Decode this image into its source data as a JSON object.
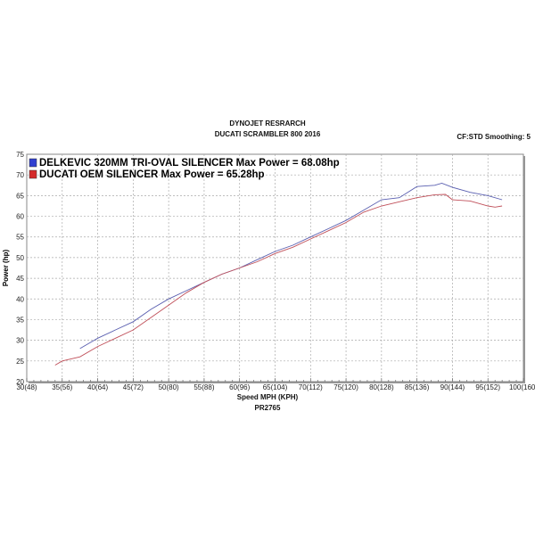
{
  "chart_data": {
    "type": "line",
    "title": "DYNOJET RESRARCH",
    "subtitle": "DUCATI SCRAMBLER 800 2016",
    "corner_note": "CF:STD Smoothing: 5",
    "xlabel": "Speed MPH (KPH)",
    "footer": "PR2765",
    "ylabel": "Power (hp)",
    "xlim": [
      30,
      100
    ],
    "ylim": [
      20,
      75
    ],
    "grid": true,
    "legend_placement": "top-left",
    "x_ticks": [
      "30(48)",
      "35(56)",
      "40(64)",
      "45(72)",
      "50(80)",
      "55(88)",
      "60(96)",
      "65(104)",
      "70(112)",
      "75(120)",
      "80(128)",
      "85(136)",
      "90(144)",
      "95(152)",
      "100(160)"
    ],
    "y_ticks": [
      "20",
      "25",
      "30",
      "35",
      "40",
      "45",
      "50",
      "55",
      "60",
      "65",
      "70",
      "75"
    ],
    "series": [
      {
        "name": "DELKEVIC 320MM TRI-OVAL SILENCER  Max Power = 68.08hp",
        "color": "#5a5fb0",
        "x": [
          37.5,
          40,
          42.5,
          45,
          47.5,
          50,
          52.5,
          55,
          57.5,
          60,
          62.5,
          65,
          67.5,
          70,
          72.5,
          75,
          77.5,
          80,
          82.5,
          85,
          87.5,
          88.5,
          90,
          92.5,
          95,
          97
        ],
        "y": [
          28,
          30.5,
          32.5,
          34.5,
          37.5,
          40,
          42,
          44,
          46,
          47.5,
          49.5,
          51.5,
          53,
          55,
          57,
          59,
          61.5,
          64,
          64.5,
          67.2,
          67.5,
          68,
          67,
          65.8,
          65,
          64
        ]
      },
      {
        "name": "DUCATI OEM SILENCER Max Power = 65.28hp",
        "color": "#c0505a",
        "x": [
          34,
          35,
          37.5,
          40,
          42.5,
          45,
          47.5,
          50,
          52.5,
          55,
          57.5,
          60,
          62.5,
          65,
          67.5,
          70,
          72.5,
          75,
          77.5,
          80,
          82.5,
          85,
          87.5,
          89,
          90,
          92.5,
          95,
          96,
          97
        ],
        "y": [
          24,
          25,
          26,
          28.5,
          30.5,
          32.5,
          35.5,
          38.5,
          41.5,
          44,
          46,
          47.5,
          49,
          51,
          52.5,
          54.5,
          56.5,
          58.5,
          61,
          62.5,
          63.5,
          64.5,
          65.2,
          65.3,
          64,
          63.7,
          62.5,
          62.2,
          62.5
        ]
      }
    ],
    "legend_colors": {
      "blue": "#2f3fd0",
      "red": "#d42a2a"
    }
  }
}
